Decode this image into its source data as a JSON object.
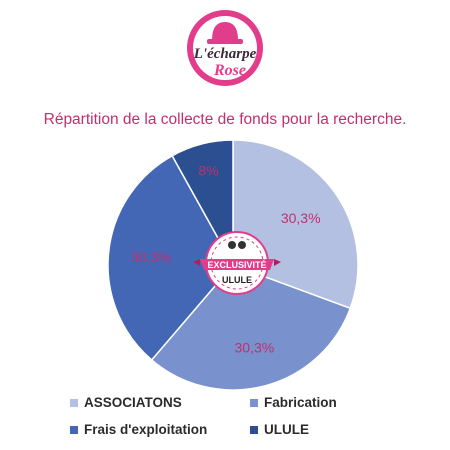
{
  "logo": {
    "line1": "L'écharpe",
    "line2": "Rose"
  },
  "chart_data": {
    "type": "pie",
    "title": "Répartition de la collecte de fonds pour la recherche.",
    "categories": [
      "ASSOCIATONS",
      "Fabrication",
      "Frais d'exploitation",
      "ULULE"
    ],
    "values": [
      30.3,
      30.3,
      30.3,
      8
    ],
    "data_labels": [
      "30,3%",
      "30,3%",
      "30,3%",
      "8%"
    ],
    "colors": [
      "#b4c0e2",
      "#7991cd",
      "#4467b5",
      "#2c4f91"
    ],
    "label_color": "#c0306e",
    "legend_position": "bottom"
  },
  "badge": {
    "top": "EXCLUSIVITÉ",
    "bottom": "ULULE"
  }
}
